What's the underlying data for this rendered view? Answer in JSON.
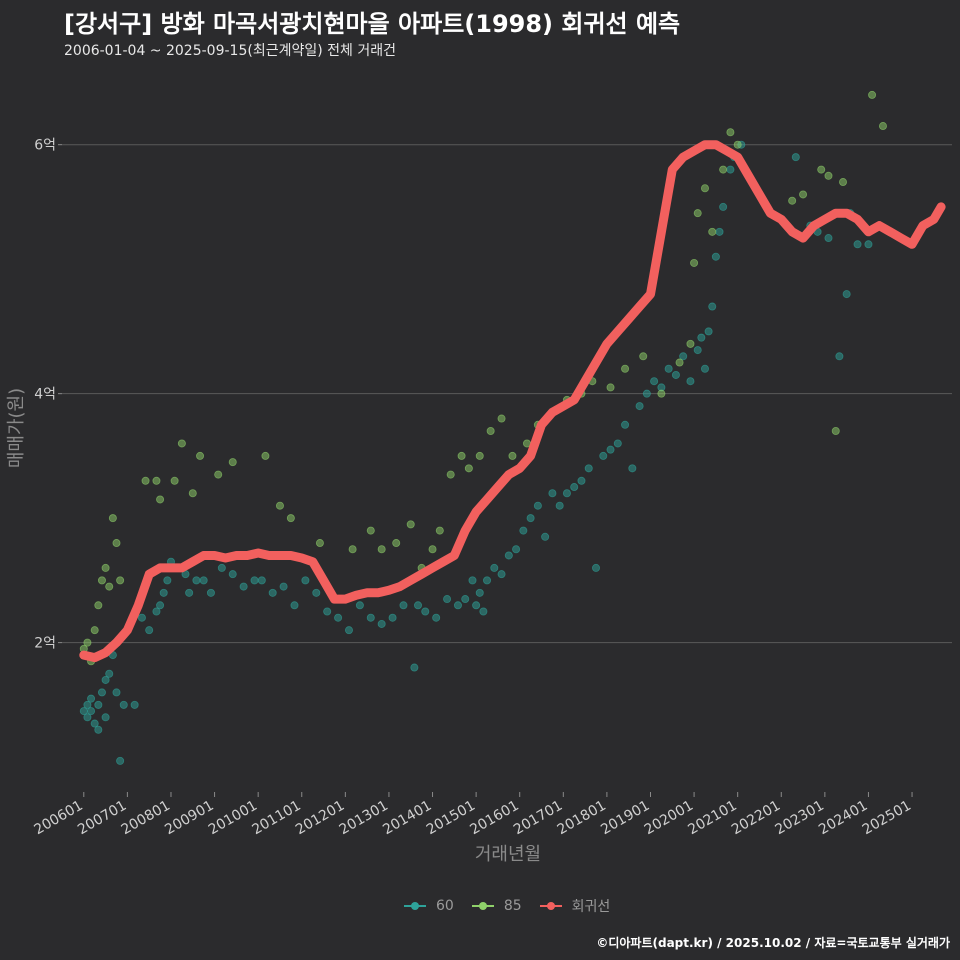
{
  "header": {
    "title": "[강서구] 방화 마곡서광치현마을 아파트(1998) 회귀선 예측",
    "subtitle": "2006-01-04 ~ 2025-09-15(최근계약일) 전체 거래건"
  },
  "footer": {
    "credit": "©디아파트(dapt.kr) / 2025.10.02 / 자료=국토교통부 실거래가"
  },
  "colors": {
    "background": "#2b2b2d",
    "grid": "#5a5a5a",
    "s60": "#2ea39a",
    "s85": "#8fd16a",
    "regression": "#f2605e"
  },
  "chart_data": {
    "type": "scatter",
    "title": "[강서구] 방화 마곡서광치현마을 아파트(1998) 회귀선 예측",
    "xlabel": "거래년월",
    "ylabel": "매매가(원)",
    "x_range": [
      "2005-07",
      "2025-12"
    ],
    "ylim": [
      0.8,
      6.6
    ],
    "y_unit": "억",
    "y_ticks": [
      2,
      4,
      6
    ],
    "y_tick_labels": [
      "2억",
      "4억",
      "6억"
    ],
    "x_ticks": [
      "200601",
      "200701",
      "200801",
      "200901",
      "201001",
      "201101",
      "201201",
      "201301",
      "201401",
      "201501",
      "201601",
      "201701",
      "201801",
      "201901",
      "202001",
      "202101",
      "202201",
      "202301",
      "202401",
      "202501"
    ],
    "grid": "horizontal",
    "legend_position": "bottom",
    "legend": [
      {
        "key": "60",
        "label": "60",
        "color": "#2ea39a"
      },
      {
        "key": "85",
        "label": "85",
        "color": "#8fd16a"
      },
      {
        "key": "reg",
        "label": "회귀선",
        "color": "#f2605e"
      }
    ],
    "series": [
      {
        "name": "60",
        "points": [
          [
            "2006-01",
            1.45
          ],
          [
            "2006-02",
            1.5
          ],
          [
            "2006-02",
            1.4
          ],
          [
            "2006-03",
            1.55
          ],
          [
            "2006-03",
            1.45
          ],
          [
            "2006-04",
            1.35
          ],
          [
            "2006-05",
            1.5
          ],
          [
            "2006-05",
            1.3
          ],
          [
            "2006-06",
            1.6
          ],
          [
            "2006-07",
            1.7
          ],
          [
            "2006-07",
            1.4
          ],
          [
            "2006-08",
            1.75
          ],
          [
            "2006-09",
            1.9
          ],
          [
            "2006-10",
            1.6
          ],
          [
            "2006-11",
            1.05
          ],
          [
            "2006-12",
            1.5
          ],
          [
            "2007-03",
            1.5
          ],
          [
            "2007-05",
            2.2
          ],
          [
            "2007-07",
            2.1
          ],
          [
            "2007-09",
            2.25
          ],
          [
            "2007-10",
            2.3
          ],
          [
            "2007-11",
            2.4
          ],
          [
            "2007-12",
            2.5
          ],
          [
            "2008-01",
            2.65
          ],
          [
            "2008-03",
            2.6
          ],
          [
            "2008-05",
            2.55
          ],
          [
            "2008-06",
            2.4
          ],
          [
            "2008-08",
            2.5
          ],
          [
            "2008-10",
            2.5
          ],
          [
            "2008-12",
            2.4
          ],
          [
            "2009-03",
            2.6
          ],
          [
            "2009-06",
            2.55
          ],
          [
            "2009-09",
            2.45
          ],
          [
            "2009-12",
            2.5
          ],
          [
            "2010-02",
            2.5
          ],
          [
            "2010-05",
            2.4
          ],
          [
            "2010-08",
            2.45
          ],
          [
            "2010-11",
            2.3
          ],
          [
            "2011-02",
            2.5
          ],
          [
            "2011-05",
            2.4
          ],
          [
            "2011-08",
            2.25
          ],
          [
            "2011-11",
            2.2
          ],
          [
            "2012-02",
            2.1
          ],
          [
            "2012-05",
            2.3
          ],
          [
            "2012-08",
            2.2
          ],
          [
            "2012-11",
            2.15
          ],
          [
            "2013-02",
            2.2
          ],
          [
            "2013-05",
            2.3
          ],
          [
            "2013-08",
            1.8
          ],
          [
            "2013-09",
            2.3
          ],
          [
            "2013-11",
            2.25
          ],
          [
            "2014-02",
            2.2
          ],
          [
            "2014-05",
            2.35
          ],
          [
            "2014-08",
            2.3
          ],
          [
            "2014-10",
            2.35
          ],
          [
            "2014-12",
            2.5
          ],
          [
            "2015-01",
            2.3
          ],
          [
            "2015-02",
            2.4
          ],
          [
            "2015-03",
            2.25
          ],
          [
            "2015-04",
            2.5
          ],
          [
            "2015-06",
            2.6
          ],
          [
            "2015-08",
            2.55
          ],
          [
            "2015-10",
            2.7
          ],
          [
            "2015-12",
            2.75
          ],
          [
            "2016-02",
            2.9
          ],
          [
            "2016-04",
            3.0
          ],
          [
            "2016-06",
            3.1
          ],
          [
            "2016-08",
            2.85
          ],
          [
            "2016-10",
            3.2
          ],
          [
            "2016-12",
            3.1
          ],
          [
            "2017-02",
            3.2
          ],
          [
            "2017-04",
            3.25
          ],
          [
            "2017-06",
            3.3
          ],
          [
            "2017-08",
            3.4
          ],
          [
            "2017-10",
            2.6
          ],
          [
            "2017-12",
            3.5
          ],
          [
            "2018-02",
            3.55
          ],
          [
            "2018-04",
            3.6
          ],
          [
            "2018-06",
            3.75
          ],
          [
            "2018-08",
            3.4
          ],
          [
            "2018-10",
            3.9
          ],
          [
            "2018-12",
            4.0
          ],
          [
            "2019-02",
            4.1
          ],
          [
            "2019-04",
            4.05
          ],
          [
            "2019-06",
            4.2
          ],
          [
            "2019-08",
            4.15
          ],
          [
            "2019-10",
            4.3
          ],
          [
            "2019-12",
            4.1
          ],
          [
            "2020-02",
            4.35
          ],
          [
            "2020-03",
            4.45
          ],
          [
            "2020-04",
            4.2
          ],
          [
            "2020-05",
            4.5
          ],
          [
            "2020-06",
            4.7
          ],
          [
            "2020-07",
            5.1
          ],
          [
            "2020-08",
            5.3
          ],
          [
            "2020-09",
            5.5
          ],
          [
            "2020-11",
            5.8
          ],
          [
            "2020-12",
            5.9
          ],
          [
            "2021-02",
            6.0
          ],
          [
            "2022-05",
            5.9
          ],
          [
            "2022-09",
            5.35
          ],
          [
            "2022-11",
            5.3
          ],
          [
            "2023-02",
            5.25
          ],
          [
            "2023-05",
            4.3
          ],
          [
            "2023-07",
            4.8
          ],
          [
            "2023-08",
            5.45
          ],
          [
            "2023-10",
            5.2
          ],
          [
            "2024-01",
            5.2
          ]
        ]
      },
      {
        "name": "85",
        "points": [
          [
            "2006-01",
            1.95
          ],
          [
            "2006-02",
            2.0
          ],
          [
            "2006-03",
            1.85
          ],
          [
            "2006-04",
            2.1
          ],
          [
            "2006-05",
            2.3
          ],
          [
            "2006-06",
            2.5
          ],
          [
            "2006-07",
            2.6
          ],
          [
            "2006-08",
            2.45
          ],
          [
            "2006-09",
            3.0
          ],
          [
            "2006-10",
            2.8
          ],
          [
            "2006-11",
            2.5
          ],
          [
            "2007-06",
            3.3
          ],
          [
            "2007-09",
            3.3
          ],
          [
            "2007-10",
            3.15
          ],
          [
            "2008-02",
            3.3
          ],
          [
            "2008-04",
            3.6
          ],
          [
            "2008-07",
            3.2
          ],
          [
            "2008-09",
            3.5
          ],
          [
            "2009-02",
            3.35
          ],
          [
            "2009-06",
            3.45
          ],
          [
            "2010-03",
            3.5
          ],
          [
            "2010-07",
            3.1
          ],
          [
            "2010-10",
            3.0
          ],
          [
            "2011-06",
            2.8
          ],
          [
            "2012-03",
            2.75
          ],
          [
            "2012-08",
            2.9
          ],
          [
            "2012-11",
            2.75
          ],
          [
            "2013-03",
            2.8
          ],
          [
            "2013-07",
            2.95
          ],
          [
            "2013-10",
            2.6
          ],
          [
            "2014-01",
            2.75
          ],
          [
            "2014-03",
            2.9
          ],
          [
            "2014-06",
            3.35
          ],
          [
            "2014-09",
            3.5
          ],
          [
            "2014-11",
            3.4
          ],
          [
            "2015-02",
            3.5
          ],
          [
            "2015-05",
            3.7
          ],
          [
            "2015-08",
            3.8
          ],
          [
            "2015-11",
            3.5
          ],
          [
            "2016-03",
            3.6
          ],
          [
            "2016-06",
            3.75
          ],
          [
            "2016-10",
            3.85
          ],
          [
            "2017-02",
            3.95
          ],
          [
            "2017-06",
            4.0
          ],
          [
            "2017-09",
            4.1
          ],
          [
            "2018-02",
            4.05
          ],
          [
            "2018-06",
            4.2
          ],
          [
            "2018-11",
            4.3
          ],
          [
            "2019-04",
            4.0
          ],
          [
            "2019-09",
            4.25
          ],
          [
            "2019-12",
            4.4
          ],
          [
            "2020-01",
            5.05
          ],
          [
            "2020-02",
            5.45
          ],
          [
            "2020-04",
            5.65
          ],
          [
            "2020-06",
            5.3
          ],
          [
            "2020-09",
            5.8
          ],
          [
            "2020-11",
            6.1
          ],
          [
            "2021-01",
            6.0
          ],
          [
            "2022-04",
            5.55
          ],
          [
            "2022-07",
            5.6
          ],
          [
            "2022-12",
            5.8
          ],
          [
            "2023-02",
            5.75
          ],
          [
            "2023-04",
            3.7
          ],
          [
            "2023-06",
            5.7
          ],
          [
            "2024-02",
            6.4
          ],
          [
            "2024-05",
            6.15
          ]
        ]
      },
      {
        "name": "회귀선",
        "line": [
          [
            "2006-01",
            1.9
          ],
          [
            "2006-04",
            1.88
          ],
          [
            "2006-07",
            1.92
          ],
          [
            "2006-10",
            2.0
          ],
          [
            "2007-01",
            2.1
          ],
          [
            "2007-04",
            2.3
          ],
          [
            "2007-07",
            2.55
          ],
          [
            "2007-10",
            2.6
          ],
          [
            "2008-01",
            2.6
          ],
          [
            "2008-04",
            2.6
          ],
          [
            "2008-07",
            2.65
          ],
          [
            "2008-10",
            2.7
          ],
          [
            "2009-01",
            2.7
          ],
          [
            "2009-04",
            2.68
          ],
          [
            "2009-07",
            2.7
          ],
          [
            "2009-10",
            2.7
          ],
          [
            "2010-01",
            2.72
          ],
          [
            "2010-04",
            2.7
          ],
          [
            "2010-07",
            2.7
          ],
          [
            "2010-10",
            2.7
          ],
          [
            "2011-01",
            2.68
          ],
          [
            "2011-04",
            2.65
          ],
          [
            "2011-07",
            2.5
          ],
          [
            "2011-10",
            2.35
          ],
          [
            "2012-01",
            2.35
          ],
          [
            "2012-04",
            2.38
          ],
          [
            "2012-07",
            2.4
          ],
          [
            "2012-10",
            2.4
          ],
          [
            "2013-01",
            2.42
          ],
          [
            "2013-04",
            2.45
          ],
          [
            "2013-07",
            2.5
          ],
          [
            "2013-10",
            2.55
          ],
          [
            "2014-01",
            2.6
          ],
          [
            "2014-04",
            2.65
          ],
          [
            "2014-07",
            2.7
          ],
          [
            "2014-10",
            2.9
          ],
          [
            "2015-01",
            3.05
          ],
          [
            "2015-04",
            3.15
          ],
          [
            "2015-07",
            3.25
          ],
          [
            "2015-10",
            3.35
          ],
          [
            "2016-01",
            3.4
          ],
          [
            "2016-04",
            3.5
          ],
          [
            "2016-07",
            3.75
          ],
          [
            "2016-10",
            3.85
          ],
          [
            "2017-01",
            3.9
          ],
          [
            "2017-04",
            3.95
          ],
          [
            "2017-07",
            4.1
          ],
          [
            "2017-10",
            4.25
          ],
          [
            "2018-01",
            4.4
          ],
          [
            "2018-04",
            4.5
          ],
          [
            "2018-07",
            4.6
          ],
          [
            "2018-10",
            4.7
          ],
          [
            "2019-01",
            4.8
          ],
          [
            "2019-04",
            5.3
          ],
          [
            "2019-07",
            5.8
          ],
          [
            "2019-10",
            5.9
          ],
          [
            "2020-01",
            5.95
          ],
          [
            "2020-04",
            6.0
          ],
          [
            "2020-07",
            6.0
          ],
          [
            "2020-10",
            5.95
          ],
          [
            "2021-01",
            5.9
          ],
          [
            "2021-04",
            5.75
          ],
          [
            "2021-07",
            5.6
          ],
          [
            "2021-10",
            5.45
          ],
          [
            "2022-01",
            5.4
          ],
          [
            "2022-04",
            5.3
          ],
          [
            "2022-07",
            5.25
          ],
          [
            "2022-10",
            5.35
          ],
          [
            "2023-01",
            5.4
          ],
          [
            "2023-04",
            5.45
          ],
          [
            "2023-07",
            5.45
          ],
          [
            "2023-10",
            5.4
          ],
          [
            "2024-01",
            5.3
          ],
          [
            "2024-04",
            5.35
          ],
          [
            "2024-07",
            5.3
          ],
          [
            "2024-10",
            5.25
          ],
          [
            "2025-01",
            5.2
          ],
          [
            "2025-04",
            5.35
          ],
          [
            "2025-07",
            5.4
          ],
          [
            "2025-09",
            5.5
          ]
        ]
      }
    ]
  }
}
